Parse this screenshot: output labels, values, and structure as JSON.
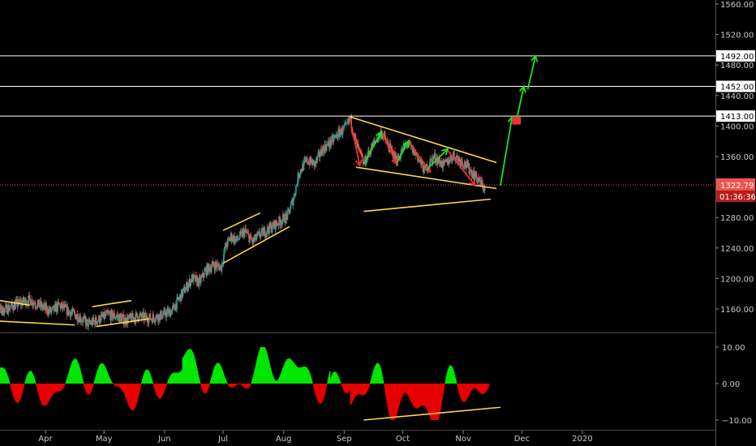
{
  "chart_data": [
    {
      "type": "candlestick",
      "panel": "price",
      "ylim": [
        1130,
        1570
      ],
      "y_ticks": [
        "1560.00",
        "1520.00",
        "1480.00",
        "1440.00",
        "1400.00",
        "1360.00",
        "1320.00",
        "1280.00",
        "1240.00",
        "1200.00",
        "1160.00"
      ],
      "x_ticks": [
        "Apr",
        "May",
        "Jun",
        "Jul",
        "Aug",
        "Sep",
        "Oct",
        "Nov",
        "Dec",
        "2020"
      ],
      "x_range": [
        "2019-03-01",
        "2020-02-15"
      ],
      "current_price": 1322.79,
      "current_price_label": "1322.79",
      "countdown_label": "01:36:36",
      "price_path": [
        [
          "2019-03-01",
          1162
        ],
        [
          "2019-03-10",
          1158
        ],
        [
          "2019-03-18",
          1167
        ],
        [
          "2019-03-24",
          1172
        ],
        [
          "2019-03-30",
          1163
        ],
        [
          "2019-04-04",
          1156
        ],
        [
          "2019-04-08",
          1165
        ],
        [
          "2019-04-12",
          1158
        ],
        [
          "2019-04-18",
          1150
        ],
        [
          "2019-04-23",
          1140
        ],
        [
          "2019-04-28",
          1146
        ],
        [
          "2019-05-03",
          1152
        ],
        [
          "2019-05-08",
          1150
        ],
        [
          "2019-05-12",
          1145
        ],
        [
          "2019-05-18",
          1150
        ],
        [
          "2019-05-25",
          1148
        ],
        [
          "2019-05-31",
          1152
        ],
        [
          "2019-06-05",
          1158
        ],
        [
          "2019-06-10",
          1180
        ],
        [
          "2019-06-15",
          1200
        ],
        [
          "2019-06-19",
          1195
        ],
        [
          "2019-06-22",
          1210
        ],
        [
          "2019-06-26",
          1218
        ],
        [
          "2019-06-30",
          1215
        ],
        [
          "2019-07-02",
          1240
        ],
        [
          "2019-07-05",
          1255
        ],
        [
          "2019-07-08",
          1250
        ],
        [
          "2019-07-12",
          1262
        ],
        [
          "2019-07-16",
          1248
        ],
        [
          "2019-07-20",
          1258
        ],
        [
          "2019-07-25",
          1266
        ],
        [
          "2019-07-30",
          1275
        ],
        [
          "2019-08-03",
          1282
        ],
        [
          "2019-08-06",
          1305
        ],
        [
          "2019-08-09",
          1340
        ],
        [
          "2019-08-13",
          1355
        ],
        [
          "2019-08-17",
          1350
        ],
        [
          "2019-08-21",
          1370
        ],
        [
          "2019-08-25",
          1378
        ],
        [
          "2019-08-29",
          1390
        ],
        [
          "2019-09-02",
          1398
        ],
        [
          "2019-09-04",
          1410
        ],
        [
          "2019-09-07",
          1378
        ],
        [
          "2019-09-11",
          1350
        ],
        [
          "2019-09-15",
          1372
        ],
        [
          "2019-09-20",
          1392
        ],
        [
          "2019-09-24",
          1372
        ],
        [
          "2019-09-28",
          1355
        ],
        [
          "2019-10-03",
          1378
        ],
        [
          "2019-10-08",
          1362
        ],
        [
          "2019-10-12",
          1342
        ],
        [
          "2019-10-17",
          1360
        ],
        [
          "2019-10-22",
          1348
        ],
        [
          "2019-10-27",
          1362
        ],
        [
          "2019-11-01",
          1352
        ],
        [
          "2019-11-06",
          1338
        ],
        [
          "2019-11-12",
          1318
        ]
      ],
      "horizontal_levels": [
        {
          "value": 1492.0,
          "label": "1492.00"
        },
        {
          "value": 1452.0,
          "label": "1452.00"
        },
        {
          "value": 1413.0,
          "label": "1413.00"
        }
      ],
      "drawings": {
        "channel_lines": [
          [
            [
              "2019-03-01",
              1174
            ],
            [
              "2019-03-24",
              1165
            ]
          ],
          [
            [
              "2019-03-01",
              1145
            ],
            [
              "2019-04-16",
              1139
            ]
          ],
          [
            [
              "2019-04-25",
              1163
            ],
            [
              "2019-05-15",
              1171
            ]
          ],
          [
            [
              "2019-04-27",
              1137
            ],
            [
              "2019-05-24",
              1147
            ]
          ],
          [
            [
              "2019-07-01",
              1263
            ],
            [
              "2019-07-20",
              1286
            ]
          ],
          [
            [
              "2019-07-01",
              1220
            ],
            [
              "2019-08-04",
              1268
            ]
          ],
          [
            [
              "2019-09-04",
              1412
            ],
            [
              "2019-11-18",
              1352
            ]
          ],
          [
            [
              "2019-09-07",
              1346
            ],
            [
              "2019-11-18",
              1318
            ]
          ],
          [
            [
              "2019-09-11",
              1288
            ],
            [
              "2019-11-15",
              1304
            ]
          ]
        ],
        "down_arrows": [
          [
            [
              "2019-09-04",
              1410
            ],
            [
              "2019-09-09",
              1348
            ]
          ],
          [
            [
              "2019-09-20",
              1392
            ],
            [
              "2019-09-28",
              1350
            ]
          ],
          [
            [
              "2019-10-04",
              1380
            ],
            [
              "2019-10-15",
              1340
            ]
          ],
          [
            [
              "2019-10-24",
              1368
            ],
            [
              "2019-11-07",
              1322
            ]
          ]
        ],
        "up_arrows": [
          [
            [
              "2019-09-11",
              1350
            ],
            [
              "2019-09-20",
              1392
            ]
          ],
          [
            [
              "2019-09-28",
              1352
            ],
            [
              "2019-10-04",
              1380
            ]
          ],
          [
            [
              "2019-10-13",
              1342
            ],
            [
              "2019-10-24",
              1370
            ]
          ],
          [
            [
              "2019-11-20",
              1322
            ],
            [
              "2019-11-26",
              1412
            ]
          ],
          [
            [
              "2019-11-28",
              1405
            ],
            [
              "2019-12-02",
              1452
            ]
          ],
          [
            [
              "2019-12-04",
              1448
            ],
            [
              "2019-12-08",
              1492
            ]
          ]
        ],
        "red_marks": [
          [
            [
              "2019-11-26",
              1408
            ],
            [
              "2019-11-28",
              1405
            ]
          ]
        ]
      }
    },
    {
      "type": "histogram",
      "panel": "oscillator",
      "ylim": [
        -12,
        12
      ],
      "y_ticks": [
        "10.00",
        "0.00",
        "−10.00"
      ],
      "divergence_line": [
        [
          "2019-09-11",
          -10
        ],
        [
          "2019-11-20",
          -6.5
        ]
      ]
    }
  ],
  "colors": {
    "background": "#000000",
    "up_candle": "#26a69a",
    "down_candle": "#ef5350",
    "hist_up": "#00e600",
    "hist_down": "#e60000",
    "channel": "#ffd54f",
    "arrow_up": "#22dd22",
    "arrow_down": "#ee3333",
    "level_line": "#ffffff",
    "current_price_line": "#ef5350",
    "axis_text": "#c8c8c8"
  }
}
